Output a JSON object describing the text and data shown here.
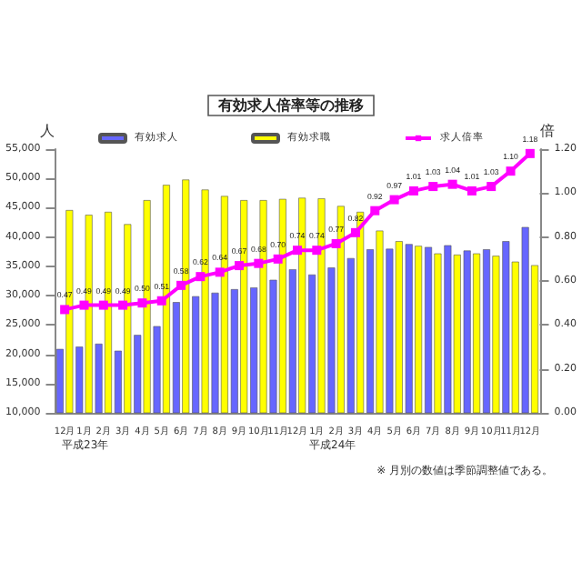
{
  "chart_data": {
    "type": "bar",
    "title": "有効求人倍率等の推移",
    "ylabel": "人",
    "y2label": "倍",
    "categories": [
      "12月",
      "1月",
      "2月",
      "3月",
      "4月",
      "5月",
      "6月",
      "7月",
      "8月",
      "9月",
      "10月",
      "11月",
      "12月",
      "1月",
      "2月",
      "3月",
      "4月",
      "5月",
      "6月",
      "7月",
      "8月",
      "9月",
      "10月",
      "11月",
      "12月"
    ],
    "series": [
      {
        "name": "有効求人",
        "color": "#6666ff",
        "values": [
          20900,
          21300,
          21800,
          20600,
          23300,
          24800,
          28900,
          29900,
          30500,
          31100,
          31400,
          32700,
          34500,
          33600,
          34800,
          36400,
          37900,
          38000,
          38800,
          38300,
          38600,
          37700,
          37900,
          39300,
          41700
        ]
      },
      {
        "name": "有効求職",
        "color": "#ffff00",
        "values": [
          44600,
          43800,
          44300,
          42200,
          46300,
          48900,
          49800,
          48100,
          47000,
          46300,
          46300,
          46500,
          46700,
          46600,
          45300,
          44300,
          41100,
          39300,
          38500,
          37200,
          37000,
          37200,
          36800,
          35800,
          35200
        ]
      },
      {
        "name": "求人倍率",
        "type": "line",
        "axis": "y2",
        "color": "#ff00ff",
        "values": [
          0.47,
          0.49,
          0.49,
          0.49,
          0.5,
          0.51,
          0.58,
          0.62,
          0.64,
          0.67,
          0.68,
          0.7,
          0.74,
          0.74,
          0.77,
          0.82,
          0.92,
          0.97,
          1.01,
          1.03,
          1.04,
          1.01,
          1.03,
          1.1,
          1.18
        ],
        "value_labels": [
          "0.47",
          "0.49",
          "0.49",
          "0.49",
          "0.50",
          "0.51",
          "0.58",
          "0.62",
          "0.64",
          "0.67",
          "0.68",
          "0.70",
          "0.74",
          "0.74",
          "0.77",
          "0.82",
          "0.92",
          "0.97",
          "1.01",
          "1.03",
          "1.04",
          "1.01",
          "1.03",
          "1.10",
          "1.18"
        ]
      }
    ],
    "ylim": [
      10000,
      55000
    ],
    "yticks": [
      {
        "value": 10000,
        "label": "10,000"
      },
      {
        "value": 15000,
        "label": "15,000"
      },
      {
        "value": 20000,
        "label": "20,000"
      },
      {
        "value": 25000,
        "label": "25,000"
      },
      {
        "value": 30000,
        "label": "30,000"
      },
      {
        "value": 35000,
        "label": "35,000"
      },
      {
        "value": 40000,
        "label": "40,000"
      },
      {
        "value": 45000,
        "label": "45,000"
      },
      {
        "value": 50000,
        "label": "50,000"
      },
      {
        "value": 55000,
        "label": "55,000"
      }
    ],
    "y2lim": [
      0,
      1.2
    ],
    "y2ticks": [
      {
        "value": 0,
        "label": "0.00"
      },
      {
        "value": 0.2,
        "label": "0.20"
      },
      {
        "value": 0.4,
        "label": "0.40"
      },
      {
        "value": 0.6,
        "label": "0.60"
      },
      {
        "value": 0.8,
        "label": "0.80"
      },
      {
        "value": 1.0,
        "label": "1.00"
      },
      {
        "value": 1.2,
        "label": "1.20"
      }
    ],
    "marker": "square",
    "legend": "top",
    "grid": false,
    "annotations": [
      "平成23年",
      "平成24年",
      "※ 月別の数値は季節調整値である。"
    ]
  }
}
